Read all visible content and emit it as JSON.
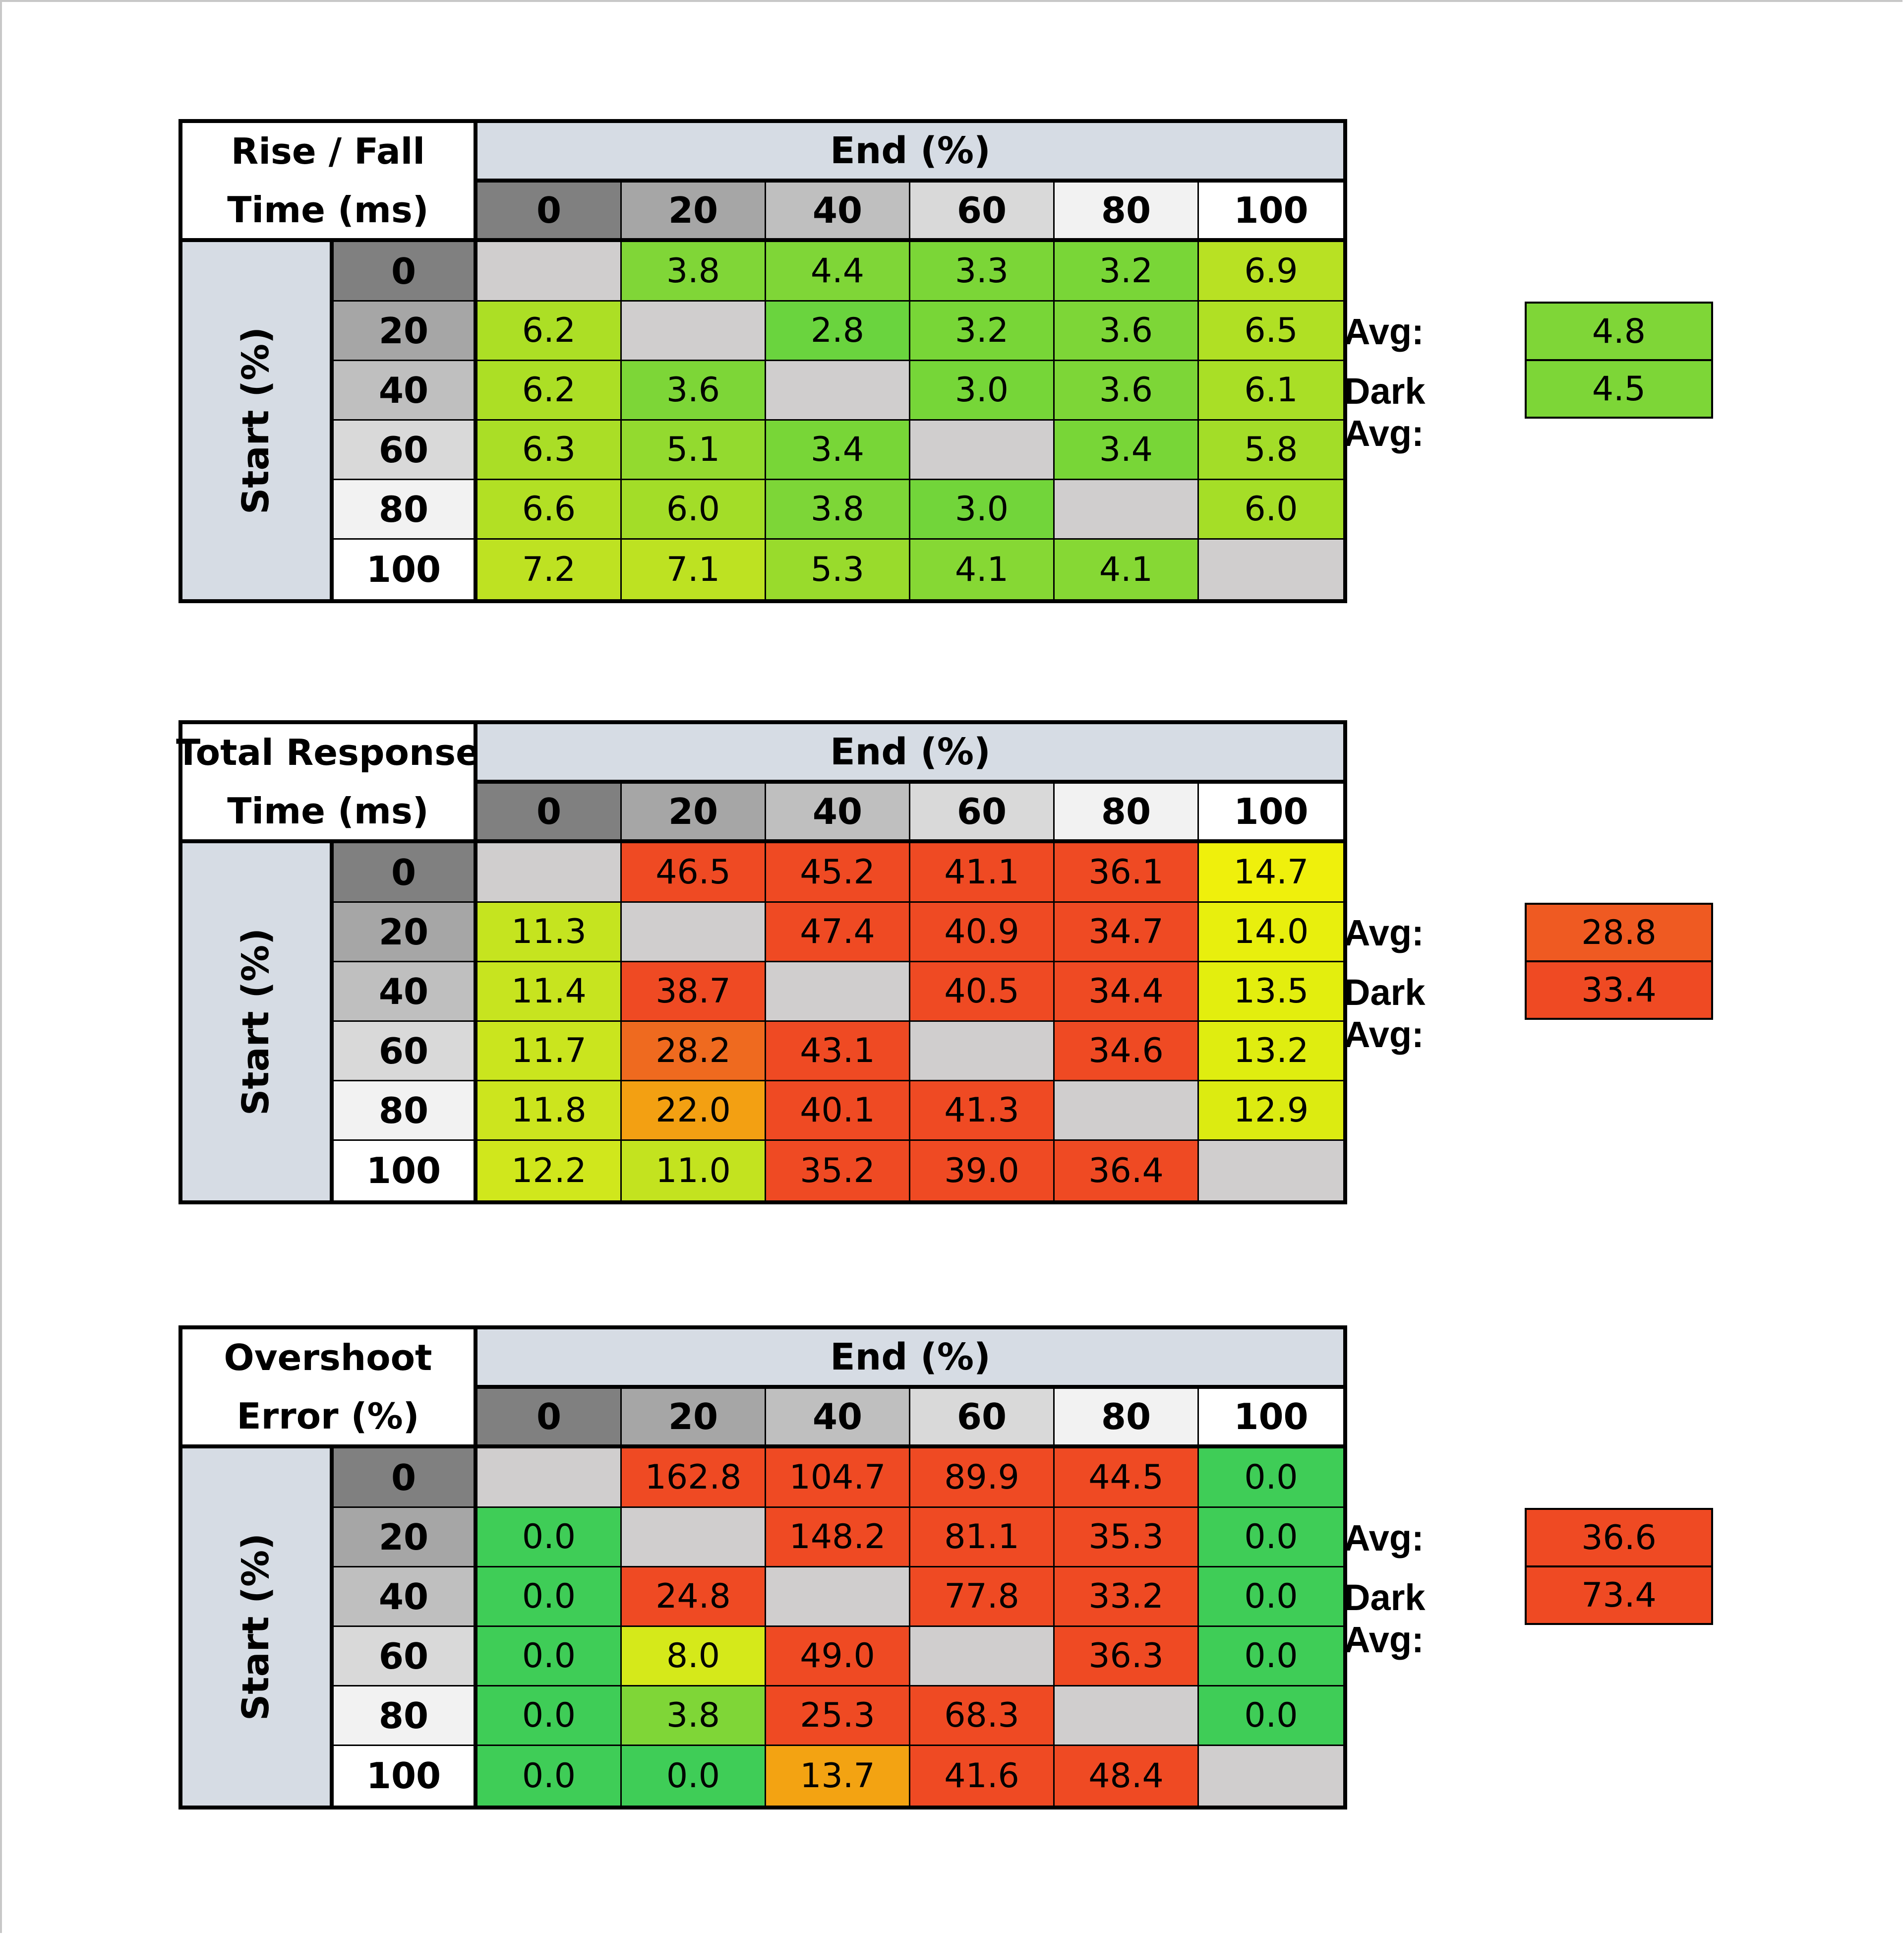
{
  "chart_data": [
    {
      "type": "heatmap",
      "title_lines": [
        "Rise / Fall",
        "Time (ms)"
      ],
      "col_axis_label": "End (%)",
      "row_axis_label": "Start (%)",
      "levels": [
        "0",
        "20",
        "40",
        "60",
        "80",
        "100"
      ],
      "values": [
        [
          "",
          "3.8",
          "4.4",
          "3.3",
          "3.2",
          "6.9"
        ],
        [
          "6.2",
          "",
          "2.8",
          "3.2",
          "3.6",
          "6.5"
        ],
        [
          "6.2",
          "3.6",
          "",
          "3.0",
          "3.6",
          "6.1"
        ],
        [
          "6.3",
          "5.1",
          "3.4",
          "",
          "3.4",
          "5.8"
        ],
        [
          "6.6",
          "6.0",
          "3.8",
          "3.0",
          "",
          "6.0"
        ],
        [
          "7.2",
          "7.1",
          "5.3",
          "4.1",
          "4.1",
          ""
        ]
      ],
      "colors": [
        [
          null,
          "#80d637",
          "#7fd637",
          "#7bd637",
          "#79d637",
          "#b8e123"
        ],
        [
          "#acdf25",
          null,
          "#6ad43e",
          "#78d637",
          "#7dd637",
          "#b0e024"
        ],
        [
          "#acdf25",
          "#7dd637",
          null,
          "#76d638",
          "#7dd637",
          "#a9df26"
        ],
        [
          "#aade26",
          "#93da2f",
          "#78d637",
          null,
          "#78d637",
          "#a3dd28"
        ],
        [
          "#b2e024",
          "#a3dd28",
          "#7dd637",
          "#72d53a",
          null,
          "#a5de27"
        ],
        [
          "#bee222",
          "#bde222",
          "#99db2c",
          "#86d834",
          "#86d834",
          null
        ]
      ],
      "avg_label": "Avg:",
      "avg_value": "4.8",
      "avg_color": "#7fd637",
      "dark_avg_label": "Dark Avg:",
      "dark_avg_value": "4.5",
      "dark_avg_color": "#7dd637"
    },
    {
      "type": "heatmap",
      "title_lines": [
        "Total Response",
        "Time (ms)"
      ],
      "col_axis_label": "End (%)",
      "row_axis_label": "Start (%)",
      "levels": [
        "0",
        "20",
        "40",
        "60",
        "80",
        "100"
      ],
      "values": [
        [
          "",
          "46.5",
          "45.2",
          "41.1",
          "36.1",
          "14.7"
        ],
        [
          "11.3",
          "",
          "47.4",
          "40.9",
          "34.7",
          "14.0"
        ],
        [
          "11.4",
          "38.7",
          "",
          "40.5",
          "34.4",
          "13.5"
        ],
        [
          "11.7",
          "28.2",
          "43.1",
          "",
          "34.6",
          "13.2"
        ],
        [
          "11.8",
          "22.0",
          "40.1",
          "41.3",
          "",
          "12.9"
        ],
        [
          "12.2",
          "11.0",
          "35.2",
          "39.0",
          "36.4",
          ""
        ]
      ],
      "colors": [
        [
          null,
          "#ef4a23",
          "#ef4a23",
          "#ef4a23",
          "#ef4a23",
          "#eff00c"
        ],
        [
          "#c5e41f",
          null,
          "#ef4a23",
          "#ef4a23",
          "#ef4a23",
          "#e8ef0d"
        ],
        [
          "#c7e41f",
          "#ef4a23",
          null,
          "#ef4a23",
          "#ef4a23",
          "#e3ee0e"
        ],
        [
          "#cae51e",
          "#ef6a1f",
          "#ef4a23",
          null,
          "#ef4a23",
          "#dfed10"
        ],
        [
          "#cce51e",
          "#f3a012",
          "#ef4a23",
          "#ef4a23",
          null,
          "#dceb11"
        ],
        [
          "#d0e71c",
          "#c3e31f",
          "#ef4a23",
          "#ef4a23",
          "#ef4a23",
          null
        ]
      ],
      "avg_label": "Avg:",
      "avg_value": "28.8",
      "avg_color": "#ef5a22",
      "dark_avg_label": "Dark Avg:",
      "dark_avg_value": "33.4",
      "dark_avg_color": "#ef4a23"
    },
    {
      "type": "heatmap",
      "title_lines": [
        "Overshoot",
        "Error (%)"
      ],
      "col_axis_label": "End (%)",
      "row_axis_label": "Start (%)",
      "levels": [
        "0",
        "20",
        "40",
        "60",
        "80",
        "100"
      ],
      "values": [
        [
          "",
          "162.8",
          "104.7",
          "89.9",
          "44.5",
          "0.0"
        ],
        [
          "0.0",
          "",
          "148.2",
          "81.1",
          "35.3",
          "0.0"
        ],
        [
          "0.0",
          "24.8",
          "",
          "77.8",
          "33.2",
          "0.0"
        ],
        [
          "0.0",
          "8.0",
          "49.0",
          "",
          "36.3",
          "0.0"
        ],
        [
          "0.0",
          "3.8",
          "25.3",
          "68.3",
          "",
          "0.0"
        ],
        [
          "0.0",
          "0.0",
          "13.7",
          "41.6",
          "48.4",
          ""
        ]
      ],
      "colors": [
        [
          null,
          "#ef4a23",
          "#ef4a23",
          "#ef4a23",
          "#ef4a23",
          "#3fcd57"
        ],
        [
          "#3fcd57",
          null,
          "#ef4a23",
          "#ef4a23",
          "#ef4a23",
          "#3fcd57"
        ],
        [
          "#3fcd57",
          "#ef4a23",
          null,
          "#ef4a23",
          "#ef4a23",
          "#3fcd57"
        ],
        [
          "#3fcd57",
          "#d5e91a",
          "#ef4a23",
          null,
          "#ef4a23",
          "#3fcd57"
        ],
        [
          "#3fcd57",
          "#7fd637",
          "#ef4a23",
          "#ef4a23",
          null,
          "#3fcd57"
        ],
        [
          "#3fcd57",
          "#3fcd57",
          "#f3a312",
          "#ef4a23",
          "#ef4a23",
          null
        ]
      ],
      "avg_label": "Avg:",
      "avg_value": "36.6",
      "avg_color": "#ef4a23",
      "dark_avg_label": "Dark Avg:",
      "dark_avg_value": "73.4",
      "dark_avg_color": "#ef4a23"
    }
  ],
  "colors": {
    "header_band": "#d6dce4",
    "diagonal_empty": "#d0cece",
    "level_shades": [
      "#808080",
      "#a6a6a6",
      "#bfbfbf",
      "#d9d9d9",
      "#f2f2f2",
      "#ffffff"
    ]
  }
}
